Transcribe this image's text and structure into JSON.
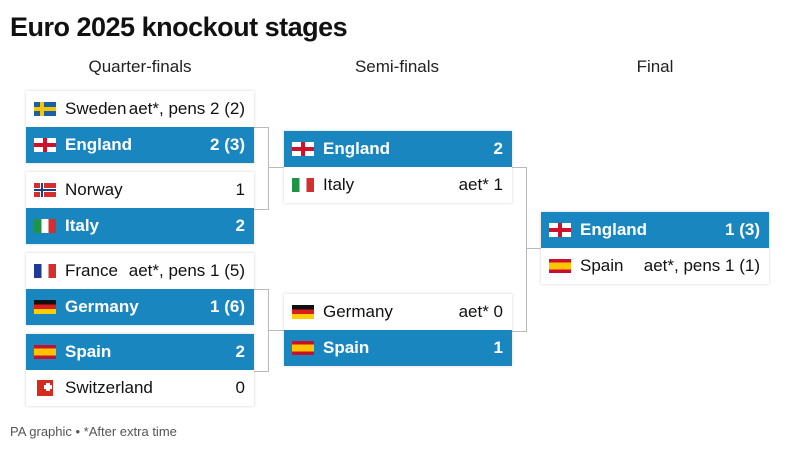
{
  "title": "Euro 2025 knockout stages",
  "rounds": {
    "qf": "Quarter-finals",
    "sf": "Semi-finals",
    "final": "Final"
  },
  "footer": "PA graphic • *After extra time",
  "qf": [
    {
      "top": {
        "team": "Sweden",
        "score": "aet*, pens 2 (2)",
        "flag": "sweden-flag",
        "win": false
      },
      "bottom": {
        "team": "England",
        "score": "2 (3)",
        "flag": "england-flag",
        "win": true
      }
    },
    {
      "top": {
        "team": "Norway",
        "score": "1",
        "flag": "norway-flag",
        "win": false
      },
      "bottom": {
        "team": "Italy",
        "score": "2",
        "flag": "italy-flag",
        "win": true
      }
    },
    {
      "top": {
        "team": "France",
        "score": "aet*, pens 1 (5)",
        "flag": "france-flag",
        "win": false
      },
      "bottom": {
        "team": "Germany",
        "score": "1 (6)",
        "flag": "germany-flag",
        "win": true
      }
    },
    {
      "top": {
        "team": "Spain",
        "score": "2",
        "flag": "spain-flag",
        "win": true
      },
      "bottom": {
        "team": "Switzerland",
        "score": "0",
        "flag": "switzerland-flag",
        "win": false
      }
    }
  ],
  "sf": [
    {
      "top": {
        "team": "England",
        "score": "2",
        "flag": "england-flag",
        "win": true
      },
      "bottom": {
        "team": "Italy",
        "score": "aet* 1",
        "flag": "italy-flag",
        "win": false
      }
    },
    {
      "top": {
        "team": "Germany",
        "score": "aet* 0",
        "flag": "germany-flag",
        "win": false
      },
      "bottom": {
        "team": "Spain",
        "score": "1",
        "flag": "spain-flag",
        "win": true
      }
    }
  ],
  "final": {
    "top": {
      "team": "England",
      "score": "1 (3)",
      "flag": "england-flag",
      "win": true
    },
    "bottom": {
      "team": "Spain",
      "score": "aet*, pens 1 (1)",
      "flag": "spain-flag",
      "win": false
    }
  },
  "colors": {
    "winner_bg": "#1a86c0",
    "connector": "#b9b9b9"
  }
}
